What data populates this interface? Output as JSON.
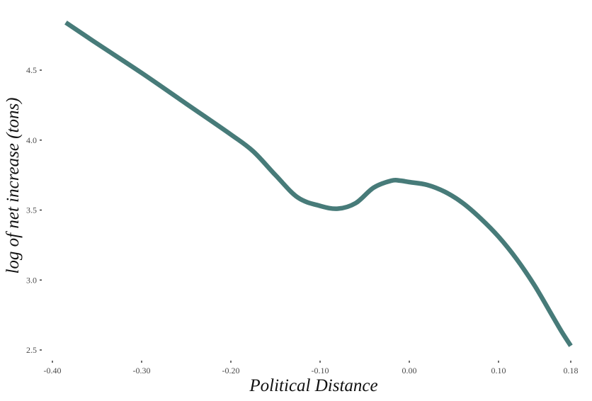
{
  "chart_data": {
    "type": "line",
    "title": "",
    "xlabel": "Political Distance",
    "ylabel": "log of net increase (tons)",
    "xlim": [
      -0.4,
      0.18
    ],
    "ylim": [
      2.5,
      4.85
    ],
    "x_ticks": [
      -0.4,
      -0.3,
      -0.2,
      -0.1,
      0.0,
      0.1,
      0.18
    ],
    "x_tick_labels": [
      "-0.40",
      "-0.30",
      "-0.20",
      "-0.10",
      "0.00",
      "0.10",
      "0.18"
    ],
    "y_ticks": [
      2.5,
      3.0,
      3.5,
      4.0,
      4.5
    ],
    "y_tick_labels": [
      "2.5",
      "3.0",
      "3.5",
      "4.0",
      "4.5"
    ],
    "grid": false,
    "series": [
      {
        "color": "#477b79",
        "x": [
          -0.385,
          -0.35,
          -0.3,
          -0.25,
          -0.2,
          -0.175,
          -0.15,
          -0.125,
          -0.1,
          -0.08,
          -0.06,
          -0.04,
          -0.02,
          -0.01,
          0.0,
          0.02,
          0.04,
          0.06,
          0.08,
          0.1,
          0.12,
          0.14,
          0.16,
          0.17,
          0.18
        ],
        "y": [
          4.84,
          4.69,
          4.48,
          4.26,
          4.04,
          3.92,
          3.75,
          3.59,
          3.53,
          3.51,
          3.55,
          3.66,
          3.71,
          3.71,
          3.7,
          3.68,
          3.63,
          3.55,
          3.44,
          3.31,
          3.15,
          2.96,
          2.74,
          2.63,
          2.53
        ]
      }
    ]
  }
}
